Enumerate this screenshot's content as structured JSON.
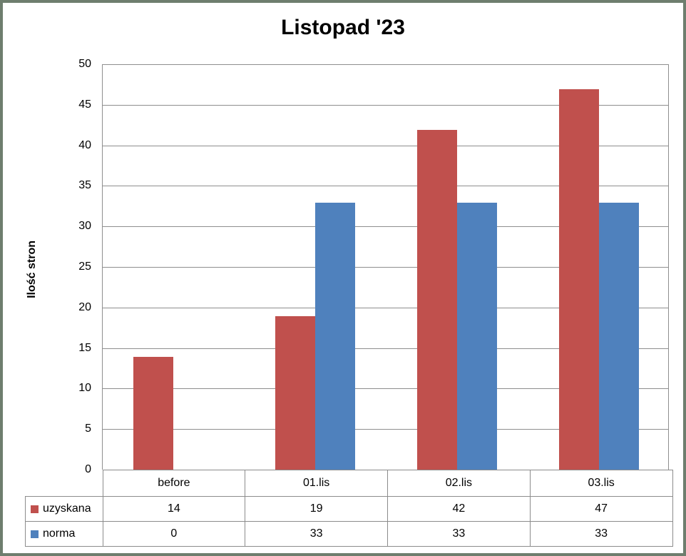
{
  "frame": {
    "border_color": "#6e7e6e",
    "background": "#ffffff"
  },
  "colors": {
    "gridline": "#8e8e8e",
    "table_border": "#8c8c8c",
    "text": "#000000",
    "series_red": "#c0504d",
    "series_blue": "#4f81bd"
  },
  "chart_data": {
    "type": "bar",
    "title": "Listopad '23",
    "xlabel": "",
    "ylabel": "Ilość stron",
    "categories": [
      "before",
      "01.lis",
      "02.lis",
      "03.lis"
    ],
    "series": [
      {
        "name": "uzyskana",
        "color": "#c0504d",
        "values": [
          14,
          19,
          42,
          47
        ]
      },
      {
        "name": "norma",
        "color": "#4f81bd",
        "values": [
          0,
          33,
          33,
          33
        ]
      }
    ],
    "ylim": [
      0,
      50
    ],
    "yticks": [
      0,
      5,
      10,
      15,
      20,
      25,
      30,
      35,
      40,
      45,
      50
    ],
    "grid": true,
    "legend_position": "data-table-left",
    "data_table_visible": true
  }
}
